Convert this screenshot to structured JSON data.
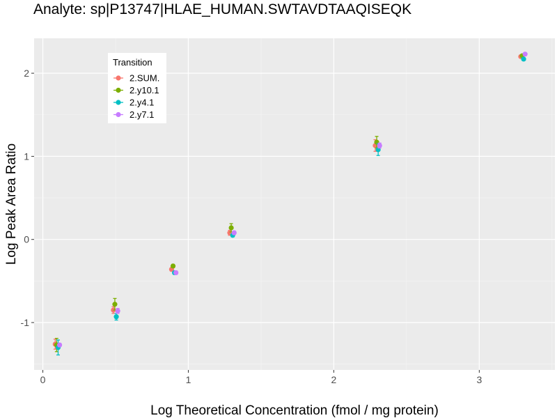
{
  "chart_data": {
    "type": "scatter",
    "title": "Analyte: sp|P13747|HLAE_HUMAN.SWTAVDTAAQISEQK",
    "xlabel": "Log Theoretical Concentration (fmol / mg protein)",
    "ylabel": "Log Peak Area Ratio",
    "xlim": [
      -0.06,
      3.52
    ],
    "ylim": [
      -1.57,
      2.42
    ],
    "x_ticks": [
      0,
      1,
      2,
      3
    ],
    "x_tick_labels": [
      "0",
      "1",
      "2",
      "3"
    ],
    "y_ticks": [
      -1,
      0,
      1,
      2
    ],
    "y_tick_labels": [
      "-1",
      "0",
      "1",
      "2"
    ],
    "grid": true,
    "legend": {
      "title": "Transition",
      "position": "top-left (inside)"
    },
    "series": [
      {
        "name": "2.SUM.",
        "color": "#F8766D",
        "offset": -0.015,
        "points": [
          {
            "x": 0.1,
            "y": -1.26,
            "err": 0.06
          },
          {
            "x": 0.5,
            "y": -0.85,
            "err": 0.04
          },
          {
            "x": 0.9,
            "y": -0.36,
            "err": 0.02
          },
          {
            "x": 1.3,
            "y": 0.08,
            "err": 0.03
          },
          {
            "x": 2.3,
            "y": 1.13,
            "err": 0.07
          },
          {
            "x": 3.3,
            "y": 2.2,
            "err": 0.01
          }
        ]
      },
      {
        "name": "2.y10.1",
        "color": "#7CAE00",
        "offset": -0.005,
        "points": [
          {
            "x": 0.1,
            "y": -1.27,
            "err": 0.08
          },
          {
            "x": 0.5,
            "y": -0.78,
            "err": 0.07
          },
          {
            "x": 0.9,
            "y": -0.32,
            "err": 0.02
          },
          {
            "x": 1.3,
            "y": 0.14,
            "err": 0.05
          },
          {
            "x": 2.3,
            "y": 1.17,
            "err": 0.07
          },
          {
            "x": 3.3,
            "y": 2.21,
            "err": 0.01
          }
        ]
      },
      {
        "name": "2.y4.1",
        "color": "#00BFC4",
        "offset": 0.005,
        "points": [
          {
            "x": 0.1,
            "y": -1.3,
            "err": 0.09
          },
          {
            "x": 0.5,
            "y": -0.93,
            "err": 0.04
          },
          {
            "x": 0.9,
            "y": -0.4,
            "err": 0.02
          },
          {
            "x": 1.3,
            "y": 0.05,
            "err": 0.02
          },
          {
            "x": 2.3,
            "y": 1.08,
            "err": 0.07
          },
          {
            "x": 3.3,
            "y": 2.17,
            "err": 0.01
          }
        ]
      },
      {
        "name": "2.y7.1",
        "color": "#C77CFF",
        "offset": 0.015,
        "points": [
          {
            "x": 0.1,
            "y": -1.27,
            "err": 0.02
          },
          {
            "x": 0.5,
            "y": -0.86,
            "err": 0.03
          },
          {
            "x": 0.9,
            "y": -0.4,
            "err": 0.02
          },
          {
            "x": 1.3,
            "y": 0.08,
            "err": 0.02
          },
          {
            "x": 2.3,
            "y": 1.13,
            "err": 0.03
          },
          {
            "x": 3.3,
            "y": 2.23,
            "err": 0.01
          }
        ]
      }
    ]
  }
}
